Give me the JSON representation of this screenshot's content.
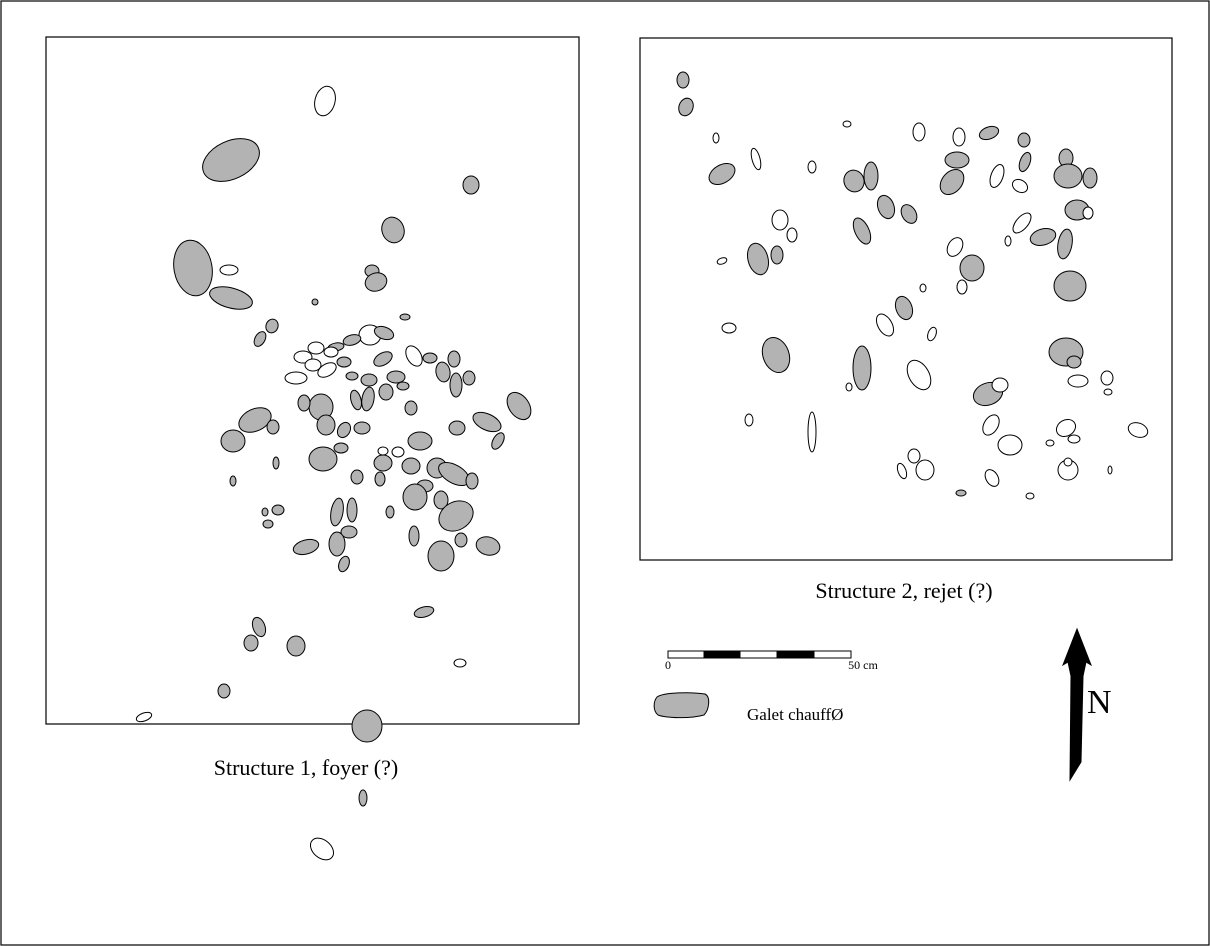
{
  "colors": {
    "heated": "#b3b3b3",
    "plain": "#ffffff",
    "ink": "#000000"
  },
  "structure1": {
    "caption": "Structure 1, foyer (?)"
  },
  "structure2": {
    "caption": "Structure 2, rejet (?)"
  },
  "scale_bar": {
    "start_label": "0",
    "end_label": "50 cm"
  },
  "legend": {
    "heated_label": "Galet chauffØ"
  },
  "north_arrow": {
    "label": "N"
  }
}
